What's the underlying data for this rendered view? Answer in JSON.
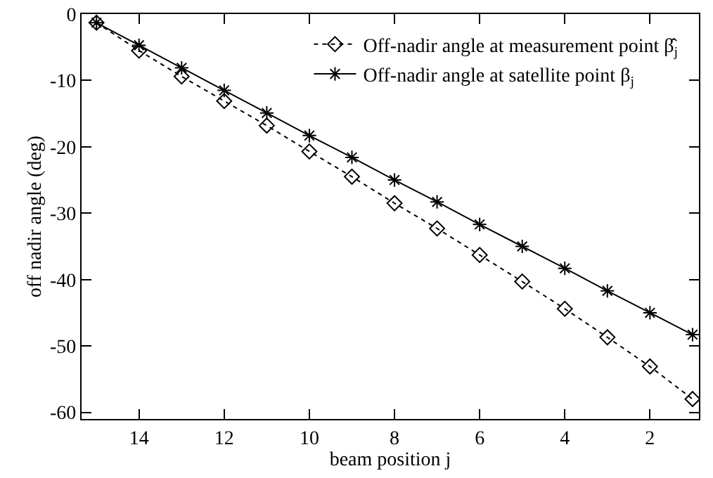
{
  "chart_data": {
    "type": "line",
    "xlabel": "beam position j",
    "ylabel": "off nadir angle (deg)",
    "x": [
      15,
      14,
      13,
      12,
      11,
      10,
      9,
      8,
      7,
      6,
      5,
      4,
      3,
      2,
      1
    ],
    "xlim": [
      15.35,
      0.85
    ],
    "xticks": [
      14,
      12,
      10,
      8,
      6,
      4,
      2
    ],
    "ylim": [
      -61,
      0
    ],
    "yticks": [
      -60,
      -50,
      -40,
      -30,
      -20,
      -10,
      0
    ],
    "grid": false,
    "legend": "top right",
    "series": [
      {
        "name": "Off-nadir angle at measurement point β̂$_{j}$",
        "color": "#000000",
        "marker": "diamond",
        "line_style": "dotted",
        "values": [
          -1.3,
          -5.5,
          -9.4,
          -13.1,
          -16.8,
          -20.7,
          -24.5,
          -28.5,
          -32.3,
          -36.3,
          -40.3,
          -44.4,
          -48.7,
          -53.1,
          -58
        ]
      },
      {
        "name": "Off-nadir angle at satellite point β$_{j}$",
        "color": "#000000",
        "marker": "cross",
        "line_style": "solid",
        "values": [
          -1.3,
          -4.7,
          -8.1,
          -11.5,
          -14.9,
          -18.3,
          -21.6,
          -25,
          -28.3,
          -31.7,
          -35,
          -38.3,
          -41.7,
          -45,
          -48.3
        ]
      }
    ]
  }
}
